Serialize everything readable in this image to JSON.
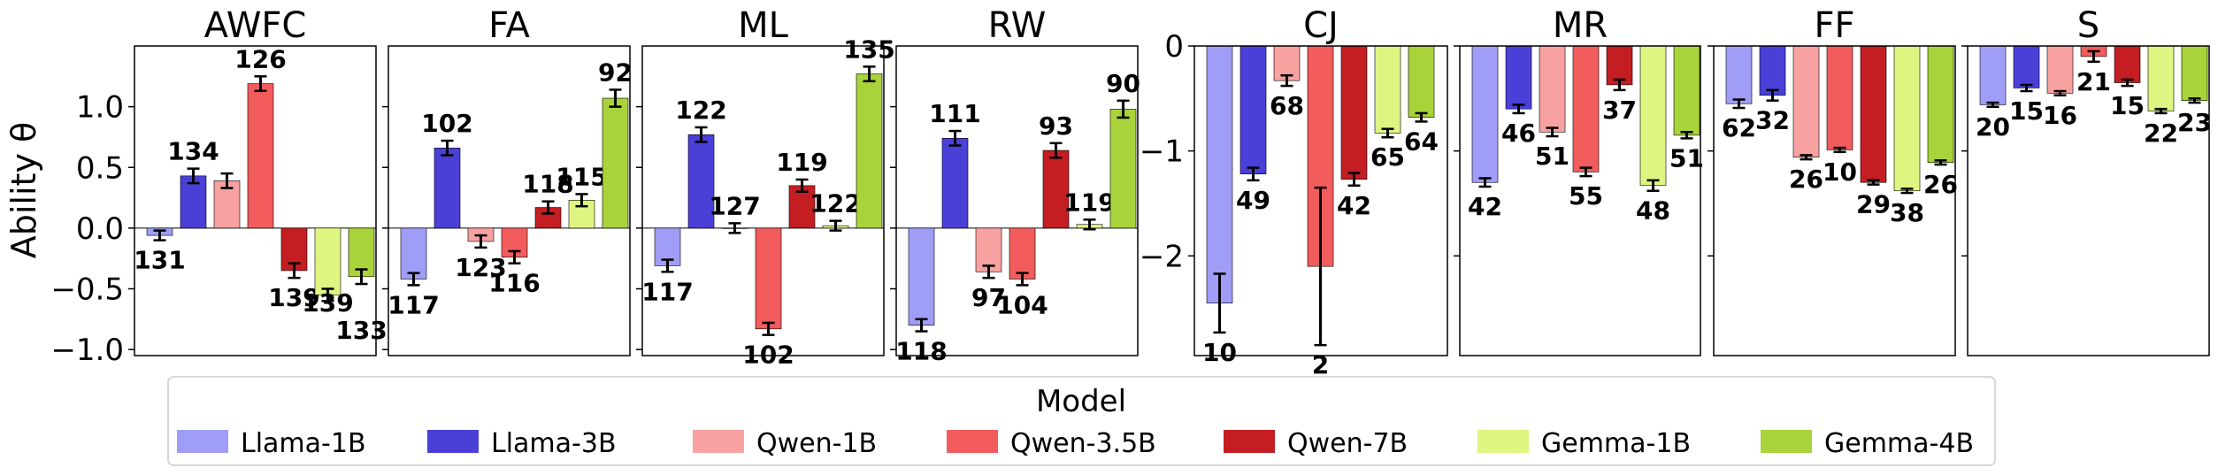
{
  "chart_data": {
    "type": "bar",
    "ylabel": "Ability θ",
    "legend": {
      "title": "Model",
      "placement": "bottom",
      "entries": [
        "Llama-1B",
        "Llama-3B",
        "Qwen-1B",
        "Qwen-3.5B",
        "Qwen-7B",
        "Gemma-1B",
        "Gemma-4B"
      ]
    },
    "colors": {
      "Llama-1B": "#a09df7",
      "Llama-3B": "#4a40d8",
      "Qwen-1B": "#f7a1a1",
      "Qwen-3.5B": "#f25c5c",
      "Qwen-7B": "#c41e22",
      "Gemma-1B": "#dff582",
      "Gemma-4B": "#a9d33a"
    },
    "groups": [
      {
        "ylim": [
          -1.05,
          1.5
        ],
        "yticks": [
          -1.0,
          -0.5,
          0.0,
          0.5,
          1.0
        ],
        "ytick_labels": [
          "−1.0",
          "−0.5",
          "0.0",
          "0.5",
          "1.0"
        ],
        "panels": [
          {
            "title": "AWFC",
            "values": [
              -0.06,
              0.43,
              0.39,
              1.19,
              -0.35,
              -0.55,
              -0.4
            ],
            "errors": [
              0.04,
              0.06,
              0.06,
              0.06,
              0.06,
              0.05,
              0.06
            ],
            "labels": [
              "131",
              "134",
              "",
              "126",
              "139",
              "139",
              "133"
            ],
            "label_dy": [
              0,
              0,
              0,
              0,
              0,
              -20,
              30
            ]
          },
          {
            "title": "FA",
            "values": [
              -0.42,
              0.66,
              -0.11,
              -0.24,
              0.17,
              0.23,
              1.07
            ],
            "errors": [
              0.05,
              0.06,
              0.05,
              0.05,
              0.05,
              0.05,
              0.07
            ],
            "labels": [
              "117",
              "102",
              "123",
              "116",
              "118",
              "115",
              "92"
            ],
            "label_dy": [
              0,
              0,
              0,
              0,
              0,
              0,
              0
            ]
          },
          {
            "title": "ML",
            "values": [
              -0.31,
              0.77,
              0.0,
              -0.83,
              0.35,
              0.02,
              1.27
            ],
            "errors": [
              0.05,
              0.06,
              0.04,
              0.05,
              0.05,
              0.04,
              0.06
            ],
            "labels": [
              "117",
              "122",
              "127",
              "102",
              "119",
              "122",
              "135"
            ],
            "label_dy": [
              0,
              0,
              0,
              0,
              0,
              0,
              0
            ]
          },
          {
            "title": "RW",
            "values": [
              -0.8,
              0.74,
              -0.36,
              -0.42,
              0.64,
              0.03,
              0.98
            ],
            "errors": [
              0.05,
              0.06,
              0.05,
              0.05,
              0.06,
              0.04,
              0.07
            ],
            "labels": [
              "118",
              "111",
              "97",
              "104",
              "93",
              "119",
              "90"
            ],
            "label_dy": [
              0,
              0,
              0,
              0,
              0,
              0,
              0
            ]
          }
        ]
      },
      {
        "ylim": [
          -2.95,
          0.0
        ],
        "yticks": [
          -2,
          -1,
          0
        ],
        "ytick_labels": [
          "−2",
          "−1",
          "0"
        ],
        "panels": [
          {
            "title": "CJ",
            "values": [
              -2.45,
              -1.22,
              -0.33,
              -2.1,
              -1.27,
              -0.83,
              -0.68
            ],
            "errors": [
              0.28,
              0.06,
              0.05,
              0.75,
              0.06,
              0.04,
              0.04
            ],
            "labels": [
              "10",
              "49",
              "68",
              "2",
              "42",
              "65",
              "64"
            ],
            "label_dy": [
              0,
              0,
              0,
              0,
              0,
              0,
              0
            ]
          },
          {
            "title": "MR",
            "values": [
              -1.3,
              -0.6,
              -0.82,
              -1.2,
              -0.37,
              -1.33,
              -0.85
            ],
            "errors": [
              0.04,
              0.04,
              0.04,
              0.04,
              0.05,
              0.05,
              0.03
            ],
            "labels": [
              "42",
              "46",
              "51",
              "55",
              "37",
              "48",
              "51"
            ],
            "label_dy": [
              0,
              0,
              0,
              0,
              0,
              0,
              0
            ]
          },
          {
            "title": "FF",
            "values": [
              -0.55,
              -0.47,
              -1.06,
              -0.99,
              -1.3,
              -1.38,
              -1.11
            ],
            "errors": [
              0.04,
              0.05,
              0.02,
              0.02,
              0.02,
              0.02,
              0.02
            ],
            "labels": [
              "62",
              "32",
              "26",
              "10",
              "29",
              "38",
              "26"
            ],
            "label_dy": [
              0,
              0,
              0,
              0,
              0,
              0,
              0
            ]
          },
          {
            "title": "S",
            "values": [
              -0.56,
              -0.4,
              -0.45,
              -0.1,
              -0.35,
              -0.62,
              -0.52
            ],
            "errors": [
              0.02,
              0.03,
              0.02,
              0.05,
              0.03,
              0.02,
              0.02
            ],
            "labels": [
              "20",
              "15",
              "16",
              "21",
              "15",
              "22",
              "23"
            ],
            "label_dy": [
              0,
              0,
              0,
              0,
              0,
              0,
              0
            ]
          }
        ]
      }
    ]
  }
}
